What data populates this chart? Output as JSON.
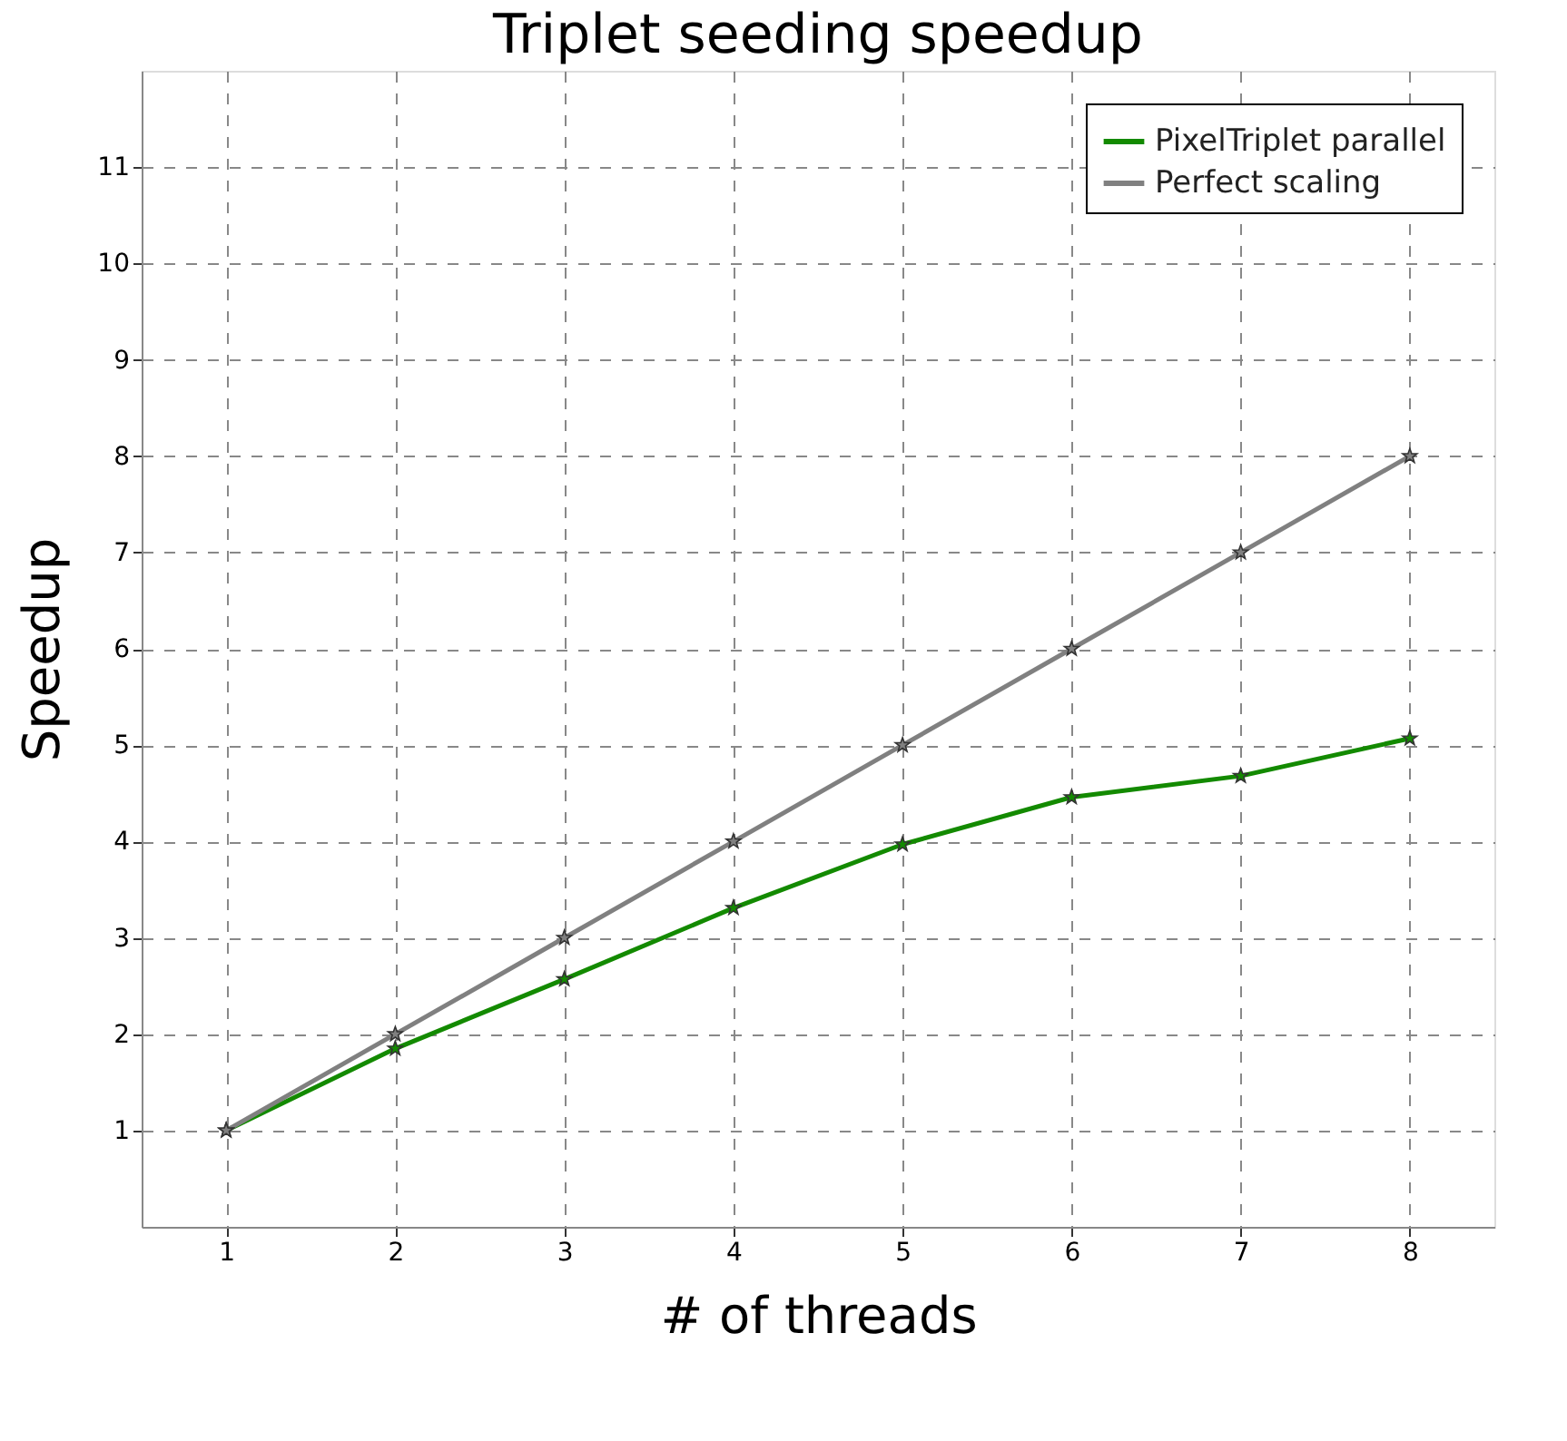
{
  "chart_data": {
    "type": "line",
    "title": "Triplet seeding speedup",
    "xlabel": "# of threads",
    "ylabel": "Speedup",
    "x": [
      1,
      2,
      3,
      4,
      5,
      6,
      7,
      8
    ],
    "series": [
      {
        "name": "PixelTriplet parallel",
        "color": "#138a00",
        "values": [
          1,
          1.85,
          2.57,
          3.31,
          3.97,
          4.46,
          4.68,
          5.07
        ]
      },
      {
        "name": "Perfect scaling",
        "color": "#808080",
        "values": [
          1,
          2,
          3,
          4,
          5,
          6,
          7,
          8
        ]
      }
    ],
    "xlim": [
      0.5,
      8.5
    ],
    "ylim": [
      0,
      12
    ],
    "xticks": [
      1,
      2,
      3,
      4,
      5,
      6,
      7,
      8
    ],
    "yticks": [
      1,
      2,
      3,
      4,
      5,
      6,
      7,
      8,
      9,
      10,
      11
    ],
    "grid": true,
    "legend": "top right",
    "marker": "star",
    "line_style": "solid"
  }
}
